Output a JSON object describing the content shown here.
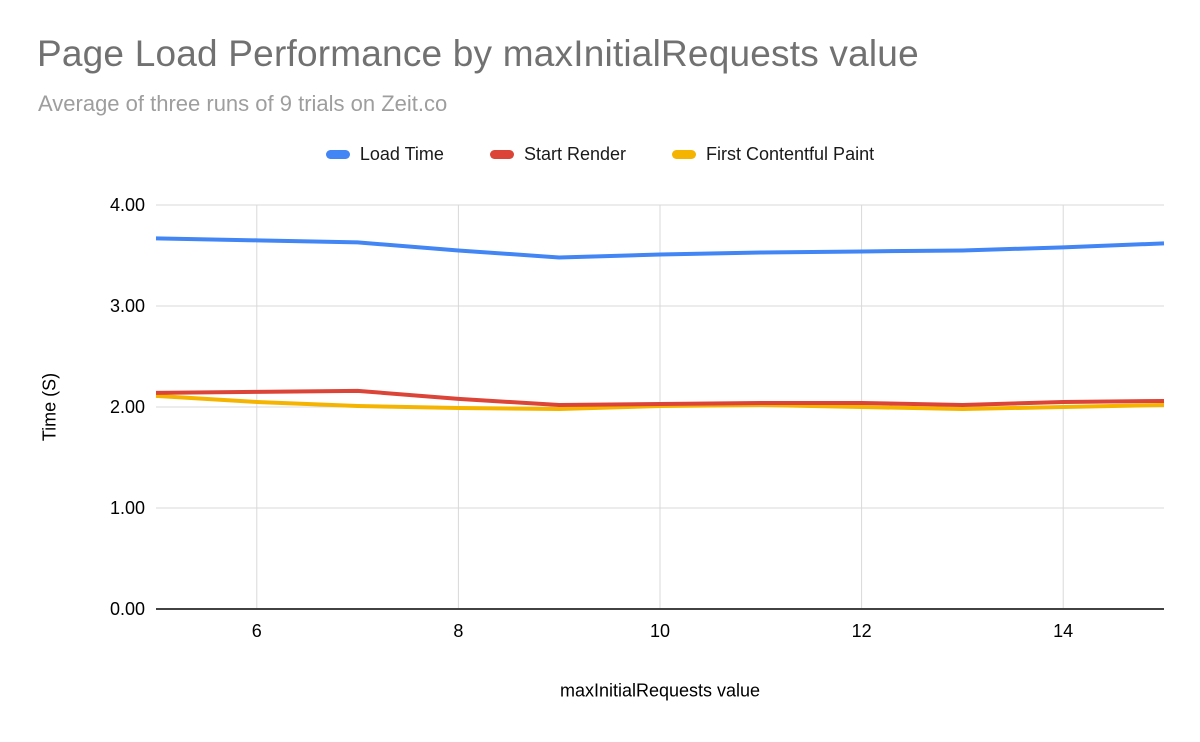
{
  "chart_data": {
    "type": "line",
    "title": "Page Load Performance by maxInitialRequests value",
    "subtitle": "Average of three runs of 9 trials on Zeit.co",
    "xlabel": "maxInitialRequests value",
    "ylabel": "Time (S)",
    "xlim": [
      5,
      15
    ],
    "ylim": [
      0,
      4
    ],
    "x": [
      5,
      6,
      7,
      8,
      9,
      10,
      11,
      12,
      13,
      14,
      15
    ],
    "x_tick_values": [
      6,
      8,
      10,
      12,
      14
    ],
    "x_ticks": [
      "6",
      "8",
      "10",
      "12",
      "14"
    ],
    "y_tick_values": [
      0,
      1,
      2,
      3,
      4
    ],
    "y_ticks": [
      "0.00",
      "1.00",
      "2.00",
      "3.00",
      "4.00"
    ],
    "grid": true,
    "legend_position": "top",
    "series": [
      {
        "name": "Load Time",
        "color": "#4285F4",
        "values": [
          3.67,
          3.65,
          3.63,
          3.55,
          3.48,
          3.51,
          3.53,
          3.54,
          3.55,
          3.58,
          3.62
        ]
      },
      {
        "name": "Start Render",
        "color": "#DB4437",
        "values": [
          2.14,
          2.15,
          2.16,
          2.08,
          2.02,
          2.03,
          2.04,
          2.04,
          2.02,
          2.05,
          2.06
        ]
      },
      {
        "name": "First Contentful Paint",
        "color": "#F4B400",
        "values": [
          2.11,
          2.05,
          2.01,
          1.99,
          1.98,
          2.01,
          2.02,
          2.0,
          1.98,
          2.0,
          2.02
        ]
      }
    ]
  },
  "colors": {
    "background": "#ffffff",
    "title": "#717171",
    "subtitle": "#9e9e9e",
    "gridline": "#d9d9d9",
    "axis_line": "#424242",
    "tick_label": "#000000",
    "legend_label": "#1a1a1a"
  }
}
